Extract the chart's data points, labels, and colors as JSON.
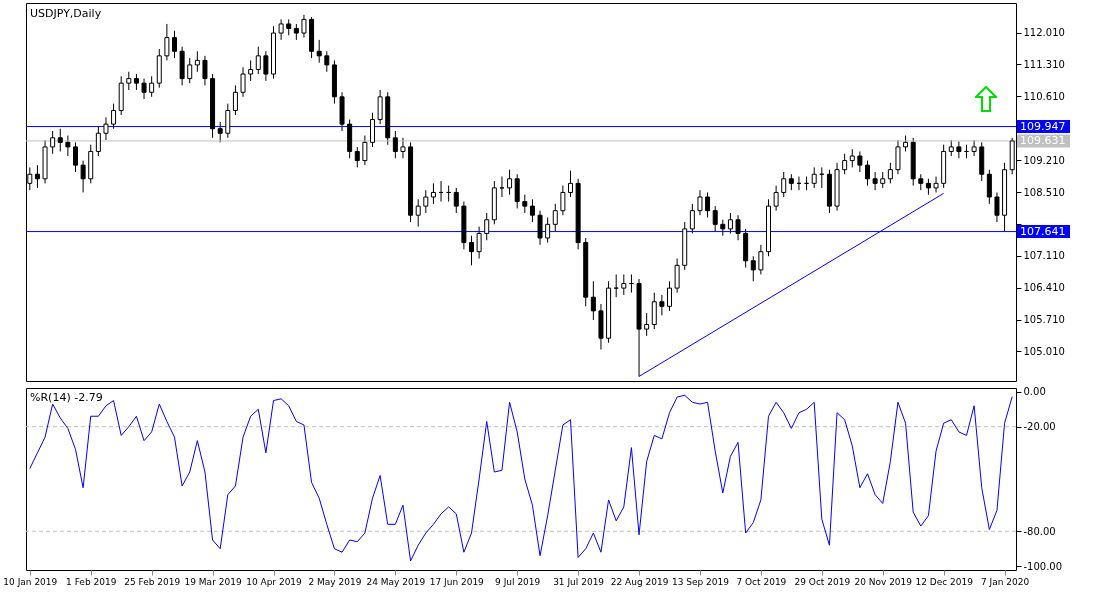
{
  "chart_data": [
    {
      "type": "candlestick",
      "title": "USDJPY,Daily",
      "tick_labels": "y",
      "categories": [
        "10 Jan 2019",
        null,
        null,
        null,
        null,
        null,
        null,
        null,
        "1 Feb 2019",
        null,
        null,
        null,
        null,
        null,
        null,
        null,
        "25 Feb 2019",
        null,
        null,
        null,
        null,
        null,
        null,
        null,
        "19 Mar 2019",
        null,
        null,
        null,
        null,
        null,
        null,
        null,
        "10 Apr 2019",
        null,
        null,
        null,
        null,
        null,
        null,
        null,
        "2 May 2019",
        null,
        null,
        null,
        null,
        null,
        null,
        null,
        "24 May 2019",
        null,
        null,
        null,
        null,
        null,
        null,
        null,
        "17 Jun 2019",
        null,
        null,
        null,
        null,
        null,
        null,
        null,
        "9 Jul 2019",
        null,
        null,
        null,
        null,
        null,
        null,
        null,
        "31 Jul 2019",
        null,
        null,
        null,
        null,
        null,
        null,
        null,
        "22 Aug 2019",
        null,
        null,
        null,
        null,
        null,
        null,
        null,
        "13 Sep 2019",
        null,
        null,
        null,
        null,
        null,
        null,
        null,
        "7 Oct 2019",
        null,
        null,
        null,
        null,
        null,
        null,
        null,
        "29 Oct 2019",
        null,
        null,
        null,
        null,
        null,
        null,
        null,
        "20 Nov 2019",
        null,
        null,
        null,
        null,
        null,
        null,
        null,
        "12 Dec 2019",
        null,
        null,
        null,
        null,
        null,
        null,
        null,
        "7 Jan 2020",
        null
      ],
      "ohlc": [
        [
          108.7,
          109.05,
          108.55,
          108.9
        ],
        [
          108.9,
          109.1,
          108.6,
          108.8
        ],
        [
          108.8,
          109.65,
          108.7,
          109.5
        ],
        [
          109.5,
          109.85,
          109.35,
          109.7
        ],
        [
          109.7,
          109.9,
          109.4,
          109.6
        ],
        [
          109.6,
          109.75,
          109.3,
          109.5
        ],
        [
          109.5,
          109.6,
          108.95,
          109.1
        ],
        [
          109.1,
          109.2,
          108.5,
          108.8
        ],
        [
          108.8,
          109.55,
          108.7,
          109.4
        ],
        [
          109.4,
          109.95,
          109.3,
          109.8
        ],
        [
          109.8,
          110.15,
          109.65,
          110.0
        ],
        [
          110.0,
          110.45,
          109.9,
          110.3
        ],
        [
          110.3,
          111.05,
          110.2,
          110.9
        ],
        [
          110.9,
          111.15,
          110.75,
          111.0
        ],
        [
          111.0,
          111.1,
          110.75,
          110.9
        ],
        [
          110.9,
          111.0,
          110.55,
          110.7
        ],
        [
          110.7,
          111.05,
          110.6,
          110.9
        ],
        [
          110.9,
          111.65,
          110.8,
          111.5
        ],
        [
          111.5,
          112.2,
          111.4,
          111.9
        ],
        [
          111.9,
          112.05,
          111.45,
          111.6
        ],
        [
          111.6,
          111.7,
          110.85,
          111.0
        ],
        [
          111.0,
          111.45,
          110.9,
          111.3
        ],
        [
          111.3,
          111.6,
          111.15,
          111.4
        ],
        [
          111.4,
          111.5,
          110.85,
          111.0
        ],
        [
          111.0,
          111.1,
          109.7,
          109.9
        ],
        [
          109.9,
          110.05,
          109.6,
          109.8
        ],
        [
          109.8,
          110.45,
          109.7,
          110.3
        ],
        [
          110.3,
          110.85,
          110.2,
          110.7
        ],
        [
          110.7,
          111.25,
          110.6,
          111.1
        ],
        [
          111.1,
          111.4,
          110.95,
          111.2
        ],
        [
          111.2,
          111.7,
          111.1,
          111.5
        ],
        [
          111.5,
          111.6,
          110.95,
          111.1
        ],
        [
          111.1,
          112.15,
          111.0,
          112.0
        ],
        [
          112.0,
          112.3,
          111.85,
          112.2
        ],
        [
          112.2,
          112.3,
          111.95,
          112.1
        ],
        [
          112.1,
          112.2,
          111.85,
          112.0
        ],
        [
          112.0,
          112.4,
          111.9,
          112.3
        ],
        [
          112.3,
          112.35,
          111.45,
          111.6
        ],
        [
          111.6,
          111.85,
          111.35,
          111.5
        ],
        [
          111.5,
          111.6,
          111.15,
          111.3
        ],
        [
          111.3,
          111.4,
          110.45,
          110.6
        ],
        [
          110.6,
          110.7,
          109.85,
          110.0
        ],
        [
          110.0,
          110.1,
          109.25,
          109.4
        ],
        [
          109.4,
          109.5,
          109.05,
          109.2
        ],
        [
          109.2,
          109.75,
          109.1,
          109.6
        ],
        [
          109.6,
          110.25,
          109.5,
          110.1
        ],
        [
          110.1,
          110.75,
          110.0,
          110.6
        ],
        [
          110.6,
          110.7,
          109.55,
          109.7
        ],
        [
          109.7,
          109.85,
          109.25,
          109.4
        ],
        [
          109.4,
          109.7,
          109.25,
          109.5
        ],
        [
          109.5,
          109.6,
          107.85,
          108.0
        ],
        [
          108.0,
          108.35,
          107.75,
          108.2
        ],
        [
          108.2,
          108.55,
          108.05,
          108.4
        ],
        [
          108.4,
          108.7,
          108.25,
          108.5
        ],
        [
          108.5,
          108.75,
          108.3,
          108.5
        ],
        [
          108.5,
          108.65,
          108.3,
          108.5
        ],
        [
          108.5,
          108.6,
          108.05,
          108.2
        ],
        [
          108.2,
          108.3,
          107.25,
          107.4
        ],
        [
          107.4,
          107.55,
          106.9,
          107.2
        ],
        [
          107.2,
          107.75,
          107.05,
          107.6
        ],
        [
          107.6,
          108.05,
          107.45,
          107.9
        ],
        [
          107.9,
          108.75,
          107.8,
          108.6
        ],
        [
          108.6,
          108.85,
          108.4,
          108.6
        ],
        [
          108.6,
          109.0,
          108.45,
          108.8
        ],
        [
          108.8,
          108.9,
          108.15,
          108.3
        ],
        [
          108.3,
          108.45,
          108.05,
          108.2
        ],
        [
          108.2,
          108.35,
          107.85,
          108.0
        ],
        [
          108.0,
          108.1,
          107.35,
          107.5
        ],
        [
          107.5,
          107.95,
          107.4,
          107.8
        ],
        [
          107.8,
          108.25,
          107.65,
          108.1
        ],
        [
          108.1,
          108.65,
          108.0,
          108.5
        ],
        [
          108.5,
          108.98,
          108.4,
          108.7
        ],
        [
          108.7,
          108.8,
          107.25,
          107.4
        ],
        [
          107.4,
          107.5,
          106.0,
          106.2
        ],
        [
          106.2,
          106.55,
          105.7,
          105.9
        ],
        [
          105.9,
          106.05,
          105.05,
          105.3
        ],
        [
          105.3,
          106.55,
          105.2,
          106.4
        ],
        [
          106.4,
          106.7,
          106.2,
          106.4
        ],
        [
          106.4,
          106.7,
          106.25,
          106.5
        ],
        [
          106.5,
          106.7,
          106.3,
          106.5
        ],
        [
          106.5,
          106.6,
          104.46,
          105.5
        ],
        [
          105.5,
          105.85,
          105.35,
          105.6
        ],
        [
          105.6,
          106.3,
          105.5,
          106.1
        ],
        [
          106.1,
          106.25,
          105.8,
          106.0
        ],
        [
          106.0,
          106.55,
          105.9,
          106.4
        ],
        [
          106.4,
          107.05,
          106.3,
          106.9
        ],
        [
          106.9,
          107.85,
          106.8,
          107.7
        ],
        [
          107.7,
          108.25,
          107.6,
          108.1
        ],
        [
          108.1,
          108.55,
          108.0,
          108.4
        ],
        [
          108.4,
          108.5,
          107.95,
          108.1
        ],
        [
          108.1,
          108.2,
          107.65,
          107.8
        ],
        [
          107.8,
          107.9,
          107.55,
          107.7
        ],
        [
          107.7,
          108.05,
          107.6,
          107.9
        ],
        [
          107.9,
          108.0,
          107.45,
          107.6
        ],
        [
          107.6,
          107.7,
          106.85,
          107.0
        ],
        [
          107.0,
          107.1,
          106.55,
          106.8
        ],
        [
          106.8,
          107.35,
          106.7,
          107.2
        ],
        [
          107.2,
          108.35,
          107.1,
          108.2
        ],
        [
          108.2,
          108.65,
          108.1,
          108.5
        ],
        [
          108.5,
          108.95,
          108.4,
          108.8
        ],
        [
          108.8,
          108.9,
          108.55,
          108.7
        ],
        [
          108.7,
          108.85,
          108.55,
          108.7
        ],
        [
          108.7,
          108.85,
          108.55,
          108.7
        ],
        [
          108.7,
          109.05,
          108.6,
          108.9
        ],
        [
          108.9,
          109.05,
          108.6,
          108.9
        ],
        [
          108.9,
          109.0,
          108.05,
          108.2
        ],
        [
          108.2,
          109.15,
          108.1,
          109.0
        ],
        [
          109.0,
          109.35,
          108.9,
          109.2
        ],
        [
          109.2,
          109.45,
          109.05,
          109.3
        ],
        [
          109.3,
          109.4,
          108.95,
          109.1
        ],
        [
          109.1,
          109.2,
          108.65,
          108.8
        ],
        [
          108.8,
          108.95,
          108.55,
          108.7
        ],
        [
          108.7,
          108.95,
          108.6,
          108.8
        ],
        [
          108.8,
          109.15,
          108.7,
          109.0
        ],
        [
          109.0,
          109.65,
          108.9,
          109.5
        ],
        [
          109.5,
          109.75,
          109.4,
          109.6
        ],
        [
          109.6,
          109.7,
          108.65,
          108.8
        ],
        [
          108.8,
          108.9,
          108.55,
          108.7
        ],
        [
          108.7,
          108.8,
          108.45,
          108.6
        ],
        [
          108.6,
          108.85,
          108.5,
          108.7
        ],
        [
          108.7,
          109.55,
          108.6,
          109.4
        ],
        [
          109.4,
          109.65,
          109.3,
          109.5
        ],
        [
          109.5,
          109.62,
          109.25,
          109.4
        ],
        [
          109.4,
          109.55,
          109.25,
          109.4
        ],
        [
          109.4,
          109.65,
          109.3,
          109.5
        ],
        [
          109.5,
          109.6,
          108.75,
          108.9
        ],
        [
          108.9,
          109.0,
          108.25,
          108.4
        ],
        [
          108.4,
          108.5,
          107.85,
          108.0
        ],
        [
          108.0,
          109.15,
          107.64,
          109.0
        ],
        [
          109.0,
          109.7,
          108.9,
          109.63
        ]
      ],
      "series": [
        {
          "type": "line",
          "color": "#0000ff",
          "x": [
            "22 Aug 2019",
            "12 Dec 2019"
          ],
          "values": [
            104.46,
            108.48
          ]
        }
      ],
      "ylim": [
        104.36,
        112.66
      ],
      "yticks": [
        {
          "value": 105.01,
          "label": "105.010"
        },
        {
          "value": 105.71,
          "label": "105.710"
        },
        {
          "value": 106.41,
          "label": "106.410"
        },
        {
          "value": 107.11,
          "label": "107.110"
        },
        {
          "value": 107.81,
          "label": null
        },
        {
          "value": 108.51,
          "label": "108.510"
        },
        {
          "value": 109.21,
          "label": "109.210"
        },
        {
          "value": 110.61,
          "label": "110.610"
        },
        {
          "value": 111.31,
          "label": "111.310"
        },
        {
          "value": 112.01,
          "label": "112.010"
        }
      ],
      "ref_lines": [
        {
          "axis": "y",
          "value": 109.947,
          "label": "109.947",
          "color": "#0000ff"
        },
        {
          "axis": "y",
          "value": 109.631,
          "label": "109.631",
          "color": "#c0c0c0"
        },
        {
          "axis": "y",
          "value": 107.641,
          "label": "107.641",
          "color": "#0000ff"
        }
      ]
    },
    {
      "type": "line",
      "title": "%R(14) -2.79",
      "categories": [
        "10 Jan 2019",
        null,
        null,
        null,
        null,
        null,
        null,
        null,
        "1 Feb 2019",
        null,
        null,
        null,
        null,
        null,
        null,
        null,
        "25 Feb 2019",
        null,
        null,
        null,
        null,
        null,
        null,
        null,
        "19 Mar 2019",
        null,
        null,
        null,
        null,
        null,
        null,
        null,
        "10 Apr 2019",
        null,
        null,
        null,
        null,
        null,
        null,
        null,
        "2 May 2019",
        null,
        null,
        null,
        null,
        null,
        null,
        null,
        "24 May 2019",
        null,
        null,
        null,
        null,
        null,
        null,
        null,
        "17 Jun 2019",
        null,
        null,
        null,
        null,
        null,
        null,
        null,
        "9 Jul 2019",
        null,
        null,
        null,
        null,
        null,
        null,
        null,
        "31 Jul 2019",
        null,
        null,
        null,
        null,
        null,
        null,
        null,
        "22 Aug 2019",
        null,
        null,
        null,
        null,
        null,
        null,
        null,
        "13 Sep 2019",
        null,
        null,
        null,
        null,
        null,
        null,
        null,
        "7 Oct 2019",
        null,
        null,
        null,
        null,
        null,
        null,
        null,
        "29 Oct 2019",
        null,
        null,
        null,
        null,
        null,
        null,
        null,
        "20 Nov 2019",
        null,
        null,
        null,
        null,
        null,
        null,
        null,
        "12 Dec 2019",
        null,
        null,
        null,
        null,
        null,
        null,
        null,
        "7 Jan 2020",
        null
      ],
      "series": [
        {
          "color": "#0000ff",
          "values": [
            -44,
            -35,
            -26,
            -7,
            -15,
            -21,
            -33,
            -55,
            -14,
            -14,
            -8,
            -5,
            -25,
            -20,
            -14,
            -28,
            -23,
            -7,
            -17,
            -26,
            -54,
            -46,
            -28,
            -46,
            -85,
            -90,
            -59,
            -54,
            -26,
            -14,
            -10,
            -35,
            -5,
            -4,
            -8,
            -17,
            -19,
            -52,
            -61,
            -76,
            -90,
            -92,
            -85,
            -86,
            -81,
            -61,
            -48,
            -76,
            -76,
            -65,
            -97,
            -88,
            -81,
            -76,
            -70,
            -66,
            -70,
            -92,
            -81,
            -50,
            -17,
            -46,
            -45,
            -6,
            -23,
            -50,
            -65,
            -94,
            -71,
            -45,
            -19,
            -16,
            -95,
            -90,
            -81,
            -92,
            -62,
            -74,
            -66,
            -32,
            -82,
            -40,
            -25,
            -27,
            -12,
            -3,
            -2,
            -6,
            -7,
            -6,
            -34,
            -58,
            -37,
            -29,
            -81,
            -75,
            -62,
            -14,
            -6,
            -12,
            -21,
            -12,
            -10,
            -6,
            -73,
            -88,
            -12,
            -16,
            -31,
            -55,
            -47,
            -59,
            -64,
            -40,
            -6,
            -18,
            -69,
            -77,
            -71,
            -34,
            -18,
            -16,
            -23,
            -25,
            -8,
            -55,
            -79,
            -68,
            -18,
            -2.79
          ]
        }
      ],
      "ylim": [
        -102.2,
        2.2
      ],
      "yticks": [
        {
          "value": 0,
          "label": "0.00"
        },
        {
          "value": -20,
          "label": "-20.00"
        },
        {
          "value": -80,
          "label": "-80.00"
        },
        {
          "value": -100,
          "label": "-100.00"
        }
      ],
      "ref_lines": [
        {
          "axis": "y",
          "value": -20,
          "color": "#c0c0c0",
          "line_style": "dashed"
        },
        {
          "axis": "y",
          "value": -80,
          "color": "#c0c0c0",
          "line_style": "dashed"
        }
      ]
    }
  ]
}
